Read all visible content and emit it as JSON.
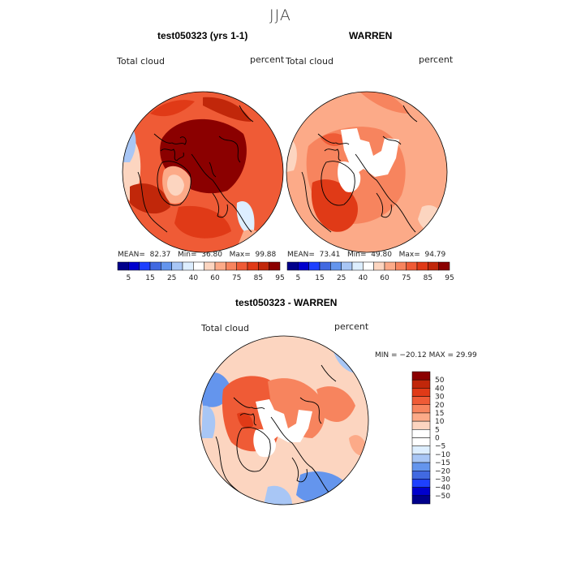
{
  "figure": {
    "season": "JJA"
  },
  "panels": [
    {
      "title": "test050323 (yrs 1-1)",
      "variable": "Total cloud",
      "units": "percent",
      "stats": {
        "mean_label": "MEAN=",
        "mean": "82.37",
        "min_label": "Min=",
        "min": "36.80",
        "max_label": "Max=",
        "max": "99.88"
      }
    },
    {
      "title": "WARREN",
      "variable": "Total cloud",
      "units": "percent",
      "stats": {
        "mean_label": "MEAN=",
        "mean": "73.41",
        "min_label": "Min=",
        "min": "49.80",
        "max_label": "Max=",
        "max": "94.79"
      }
    },
    {
      "title": "test050323 - WARREN",
      "variable": "Total cloud",
      "units": "percent",
      "stats_text": "MIN = −20.12 MAX =  29.99"
    }
  ],
  "colorbar_abs": {
    "colors": [
      "#00008b",
      "#0000cd",
      "#1e40ff",
      "#4169e1",
      "#6495ed",
      "#a8c6f5",
      "#ddeeff",
      "#ffffff",
      "#fcd5c0",
      "#fcaa88",
      "#f7845e",
      "#ef5b36",
      "#e03a17",
      "#c1270a",
      "#8b0000"
    ],
    "tick_labels": [
      "5",
      "15",
      "25",
      "40",
      "60",
      "75",
      "85",
      "95"
    ]
  },
  "colorbar_diff": {
    "colors": [
      "#8b0000",
      "#c1270a",
      "#e03a17",
      "#ef5b36",
      "#f7845e",
      "#fcaa88",
      "#fcd5c0",
      "#ffffff",
      "#ffffff",
      "#ddeeff",
      "#a8c6f5",
      "#6495ed",
      "#4169e1",
      "#1e40ff",
      "#0000cd",
      "#00008b"
    ],
    "tick_labels": [
      "50",
      "40",
      "30",
      "20",
      "15",
      "10",
      "5",
      "0",
      "−5",
      "−10",
      "−15",
      "−20",
      "−30",
      "−40",
      "−50"
    ]
  }
}
